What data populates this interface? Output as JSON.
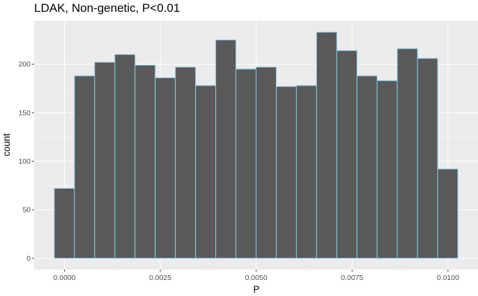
{
  "chart_data": {
    "type": "bar",
    "title": "LDAK, Non-genetic, P<0.01",
    "xlabel": "P",
    "ylabel": "count",
    "bin_width": 0.000526,
    "bins": [
      {
        "center": 0.0,
        "count": 72
      },
      {
        "center": 0.000526,
        "count": 188
      },
      {
        "center": 0.001052,
        "count": 202
      },
      {
        "center": 0.001578,
        "count": 210
      },
      {
        "center": 0.002104,
        "count": 199
      },
      {
        "center": 0.00263,
        "count": 186
      },
      {
        "center": 0.003156,
        "count": 197
      },
      {
        "center": 0.003682,
        "count": 178
      },
      {
        "center": 0.004208,
        "count": 225
      },
      {
        "center": 0.004734,
        "count": 195
      },
      {
        "center": 0.00526,
        "count": 197
      },
      {
        "center": 0.005786,
        "count": 177
      },
      {
        "center": 0.006312,
        "count": 178
      },
      {
        "center": 0.006838,
        "count": 233
      },
      {
        "center": 0.007364,
        "count": 214
      },
      {
        "center": 0.00789,
        "count": 188
      },
      {
        "center": 0.008416,
        "count": 183
      },
      {
        "center": 0.008942,
        "count": 216
      },
      {
        "center": 0.009468,
        "count": 206
      },
      {
        "center": 0.009994,
        "count": 92
      }
    ],
    "xlim": [
      -0.000789,
      0.010783
    ],
    "ylim": [
      -11.65,
      244.65
    ],
    "x_ticks": [
      0,
      0.0025,
      0.005,
      0.0075,
      0.01
    ],
    "x_tick_labels": [
      "0.0000",
      "0.0025",
      "0.0050",
      "0.0075",
      "0.0100"
    ],
    "y_ticks": [
      0,
      50,
      100,
      150,
      200
    ],
    "y_tick_labels": [
      "0",
      "50",
      "100",
      "150",
      "200"
    ],
    "grid": true,
    "legend": "none",
    "colors": {
      "bar_fill": "#595959",
      "bar_outline": "#87CEEB",
      "panel_background": "#EBEBEB",
      "grid_major": "#FFFFFF",
      "grid_minor": "#F5F5F5"
    }
  }
}
